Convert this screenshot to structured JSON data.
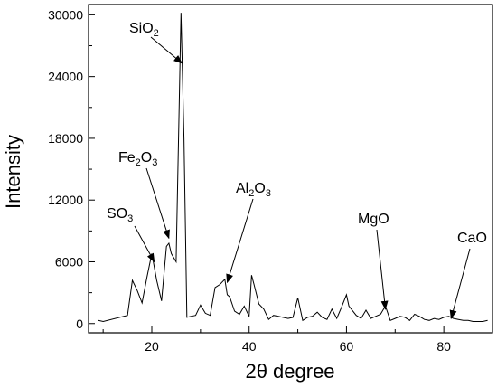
{
  "chart_data": {
    "type": "line",
    "xlabel": "2θ degree",
    "ylabel": "Intensity",
    "xlim": [
      7,
      90
    ],
    "ylim": [
      -900,
      31000
    ],
    "x_ticks": [
      20,
      40,
      60,
      80
    ],
    "y_ticks": [
      0,
      6000,
      12000,
      18000,
      24000,
      30000
    ],
    "grid": false,
    "line_color": "#000000",
    "series": [
      {
        "x": [
          9,
          10,
          15,
          16,
          17,
          18,
          19,
          20,
          21,
          22,
          23,
          23.5,
          24,
          25,
          26,
          26.6,
          27.2,
          28,
          29,
          30,
          31,
          32,
          33,
          34,
          35,
          35.5,
          36,
          37,
          38,
          39,
          40,
          40.5,
          41,
          42,
          43,
          44,
          45,
          46,
          48,
          49,
          50,
          51,
          52,
          53,
          54,
          55,
          56,
          57,
          58,
          59,
          60,
          60.5,
          61,
          62,
          63,
          64,
          65,
          66,
          67,
          68,
          69,
          70,
          71,
          72,
          73,
          74,
          75,
          76,
          77,
          78,
          79,
          80,
          81,
          82,
          83,
          84,
          85,
          86,
          87,
          88,
          89
        ],
        "y": [
          300,
          200,
          800,
          4200,
          3200,
          2000,
          4500,
          6800,
          4200,
          2200,
          7500,
          7800,
          6800,
          6000,
          30200,
          18000,
          600,
          700,
          800,
          1800,
          1000,
          800,
          3500,
          3800,
          4300,
          2800,
          2600,
          1200,
          900,
          1700,
          700,
          4700,
          3800,
          1900,
          1400,
          400,
          800,
          700,
          500,
          600,
          2500,
          300,
          600,
          700,
          1100,
          600,
          400,
          1400,
          500,
          1600,
          2800,
          1700,
          1400,
          800,
          500,
          1300,
          500,
          700,
          900,
          1700,
          300,
          500,
          700,
          600,
          300,
          900,
          700,
          400,
          300,
          500,
          400,
          600,
          700,
          500,
          400,
          300,
          300,
          200,
          200,
          200,
          300
        ]
      }
    ],
    "annotations": [
      {
        "label": "SiO",
        "sub": "2",
        "target": [
          26.2,
          25300
        ]
      },
      {
        "label": "Fe",
        "sub": "2",
        "label2": "O",
        "sub2": "3",
        "target": [
          23.5,
          8300
        ]
      },
      {
        "label": "SO",
        "sub": "3",
        "target": [
          20.5,
          6000
        ]
      },
      {
        "label": "Al",
        "sub": "2",
        "label2": "O",
        "sub2": "3",
        "target": [
          35.5,
          4000
        ]
      },
      {
        "label": "MgO",
        "target": [
          68,
          1400
        ]
      },
      {
        "label": "CaO",
        "target": [
          81.5,
          500
        ]
      }
    ]
  }
}
